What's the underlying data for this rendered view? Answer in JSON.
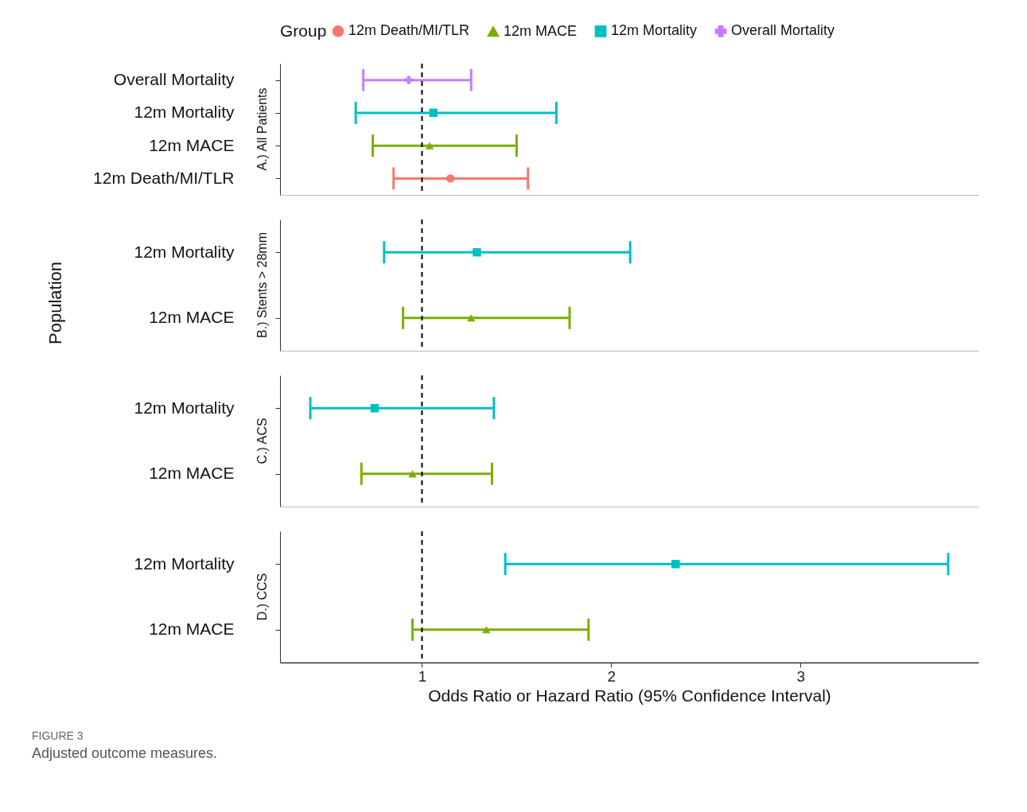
{
  "chart_data": [
    {
      "type": "scatter",
      "orientation": "horizontal",
      "title": "A.) All Patients",
      "legend_title": "Group",
      "legend": "top",
      "categories": [
        "Overall Mortality",
        "12m Mortality",
        "12m MACE",
        "12m Death/MI/TLR"
      ],
      "series": [
        {
          "name": "12m Death/MI/TLR",
          "color": "#f8766d",
          "marker": "circle",
          "values": [
            null,
            null,
            null,
            1.15
          ],
          "errors": [
            null,
            null,
            null,
            [
              0.85,
              1.56
            ]
          ]
        },
        {
          "name": "12m MACE",
          "color": "#7cae00",
          "marker": "triangle",
          "values": [
            null,
            null,
            1.04,
            null
          ],
          "errors": [
            null,
            null,
            [
              0.74,
              1.5
            ],
            null
          ]
        },
        {
          "name": "12m Mortality",
          "color": "#00bfc4",
          "marker": "square",
          "values": [
            null,
            1.06,
            null,
            null
          ],
          "errors": [
            null,
            [
              0.65,
              1.71
            ],
            null,
            null
          ]
        },
        {
          "name": "Overall Mortality",
          "color": "#c77cff",
          "marker": "cross",
          "values": [
            0.93,
            null,
            null,
            null
          ],
          "errors": [
            [
              0.69,
              1.26
            ],
            null,
            null,
            null
          ]
        }
      ],
      "xlim": [
        0.25,
        3.94
      ],
      "xticks": [
        1,
        2,
        3
      ],
      "tick_labels": "y",
      "ref_lines": [
        {
          "axis": "x",
          "value": 1,
          "line_style": "dashed"
        }
      ]
    },
    {
      "type": "scatter",
      "orientation": "horizontal",
      "title": "B.) Stents > 28mm",
      "ylabel": "Population",
      "categories": [
        "12m Mortality",
        "12m MACE"
      ],
      "series": [
        {
          "name": "12m MACE",
          "color": "#7cae00",
          "marker": "triangle",
          "values": [
            null,
            1.26
          ],
          "errors": [
            null,
            [
              0.9,
              1.78
            ]
          ]
        },
        {
          "name": "12m Mortality",
          "color": "#00bfc4",
          "marker": "square",
          "values": [
            1.29,
            null
          ],
          "errors": [
            [
              0.8,
              2.1
            ],
            null
          ]
        }
      ],
      "xlim": [
        0.25,
        3.94
      ],
      "xticks": [
        1,
        2,
        3
      ],
      "tick_labels": "y",
      "ref_lines": [
        {
          "axis": "x",
          "value": 1,
          "line_style": "dashed"
        }
      ]
    },
    {
      "type": "scatter",
      "orientation": "horizontal",
      "title": "C.) ACS",
      "categories": [
        "12m Mortality",
        "12m MACE"
      ],
      "series": [
        {
          "name": "12m MACE",
          "color": "#7cae00",
          "marker": "triangle",
          "values": [
            null,
            0.95
          ],
          "errors": [
            null,
            [
              0.68,
              1.37
            ]
          ]
        },
        {
          "name": "12m Mortality",
          "color": "#00bfc4",
          "marker": "square",
          "values": [
            0.75,
            null
          ],
          "errors": [
            [
              0.41,
              1.38
            ],
            null
          ]
        }
      ],
      "xlim": [
        0.25,
        3.94
      ],
      "xticks": [
        1,
        2,
        3
      ],
      "tick_labels": "y",
      "ref_lines": [
        {
          "axis": "x",
          "value": 1,
          "line_style": "dashed"
        }
      ]
    },
    {
      "type": "scatter",
      "orientation": "horizontal",
      "title": "D.) CCS",
      "xlabel": "Odds Ratio or Hazard Ratio (95% Confidence Interval)",
      "categories": [
        "12m Mortality",
        "12m MACE"
      ],
      "series": [
        {
          "name": "12m MACE",
          "color": "#7cae00",
          "marker": "triangle",
          "values": [
            null,
            1.34
          ],
          "errors": [
            null,
            [
              0.95,
              1.88
            ]
          ]
        },
        {
          "name": "12m Mortality",
          "color": "#00bfc4",
          "marker": "square",
          "values": [
            2.34,
            null
          ],
          "errors": [
            [
              1.44,
              3.78
            ],
            null
          ]
        }
      ],
      "xlim": [
        0.25,
        3.94
      ],
      "xticks": [
        1,
        2,
        3
      ],
      "ref_lines": [
        {
          "axis": "x",
          "value": 1,
          "line_style": "dashed"
        }
      ],
      "annotations": [
        "FIGURE 3",
        "Adjusted outcome measures."
      ]
    }
  ]
}
